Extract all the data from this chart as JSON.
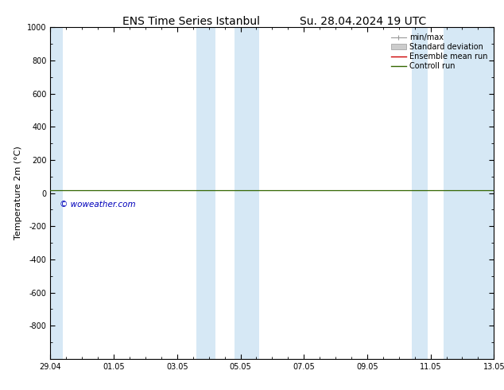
{
  "title_left": "ENS Time Series Istanbul",
  "title_right": "Su. 28.04.2024 19 UTC",
  "ylabel": "Temperature 2m (°C)",
  "ylim_top": -1000,
  "ylim_bottom": 1000,
  "yticks": [
    -800,
    -600,
    -400,
    -200,
    0,
    200,
    400,
    600,
    800,
    1000
  ],
  "xtick_positions": [
    0,
    2,
    4,
    6,
    8,
    10,
    12,
    14
  ],
  "xtick_labels": [
    "29.04",
    "01.05",
    "03.05",
    "05.05",
    "07.05",
    "09.05",
    "11.05",
    "13.05"
  ],
  "x_start": 0,
  "x_end": 14,
  "shade_color": "#d6e8f5",
  "shaded_bands": [
    [
      0.0,
      0.4
    ],
    [
      4.6,
      5.2
    ],
    [
      5.8,
      6.6
    ],
    [
      11.4,
      11.9
    ],
    [
      12.4,
      14.0
    ]
  ],
  "control_run_color": "#336600",
  "ensemble_mean_color": "#cc0000",
  "minmax_color": "#999999",
  "std_dev_color": "#cccccc",
  "watermark": "© woweather.com",
  "watermark_color": "#0000bb",
  "legend_entries": [
    "min/max",
    "Standard deviation",
    "Ensemble mean run",
    "Controll run"
  ],
  "legend_colors": [
    "#999999",
    "#cccccc",
    "#cc0000",
    "#336600"
  ],
  "background_color": "#ffffff",
  "temp_line_y": 15,
  "title_fontsize": 10,
  "axis_fontsize": 8,
  "tick_fontsize": 7,
  "legend_fontsize": 7
}
